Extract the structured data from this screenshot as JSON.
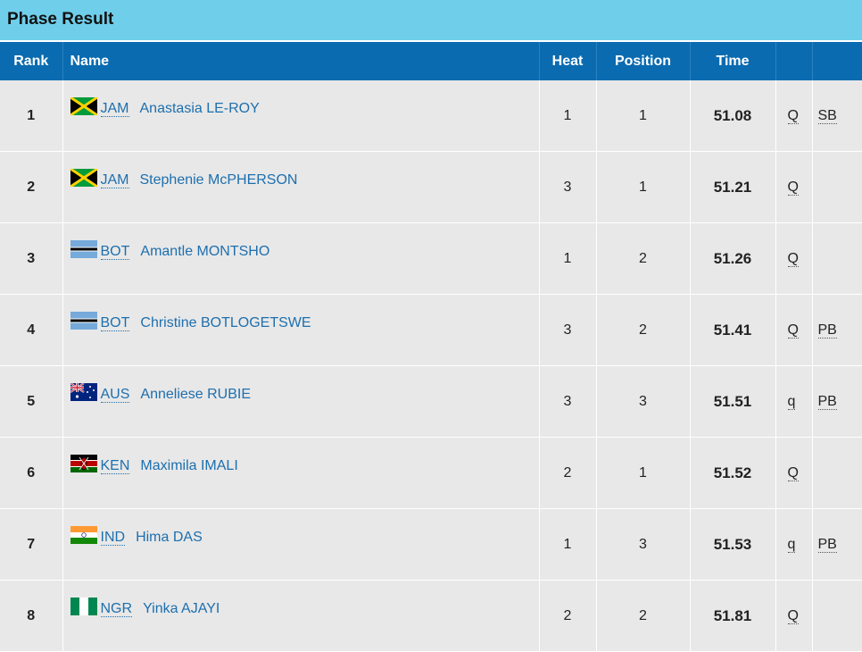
{
  "panel": {
    "title": "Phase Result"
  },
  "columns": {
    "rank": "Rank",
    "name": "Name",
    "heat": "Heat",
    "position": "Position",
    "time": "Time"
  },
  "rows": [
    {
      "rank": "1",
      "country": "JAM",
      "flag": "jamaica-flag-icon",
      "athlete": "Anastasia LE-ROY",
      "heat": "1",
      "position": "1",
      "time": "51.08",
      "q": "Q",
      "record": "SB"
    },
    {
      "rank": "2",
      "country": "JAM",
      "flag": "jamaica-flag-icon",
      "athlete": "Stephenie McPHERSON",
      "heat": "3",
      "position": "1",
      "time": "51.21",
      "q": "Q",
      "record": ""
    },
    {
      "rank": "3",
      "country": "BOT",
      "flag": "botswana-flag-icon",
      "athlete": "Amantle MONTSHO",
      "heat": "1",
      "position": "2",
      "time": "51.26",
      "q": "Q",
      "record": ""
    },
    {
      "rank": "4",
      "country": "BOT",
      "flag": "botswana-flag-icon",
      "athlete": "Christine BOTLOGETSWE",
      "heat": "3",
      "position": "2",
      "time": "51.41",
      "q": "Q",
      "record": "PB"
    },
    {
      "rank": "5",
      "country": "AUS",
      "flag": "australia-flag-icon",
      "athlete": "Anneliese RUBIE",
      "heat": "3",
      "position": "3",
      "time": "51.51",
      "q": "q",
      "record": "PB"
    },
    {
      "rank": "6",
      "country": "KEN",
      "flag": "kenya-flag-icon",
      "athlete": "Maximila IMALI",
      "heat": "2",
      "position": "1",
      "time": "51.52",
      "q": "Q",
      "record": ""
    },
    {
      "rank": "7",
      "country": "IND",
      "flag": "india-flag-icon",
      "athlete": "Hima DAS",
      "heat": "1",
      "position": "3",
      "time": "51.53",
      "q": "q",
      "record": "PB"
    },
    {
      "rank": "8",
      "country": "NGR",
      "flag": "nigeria-flag-icon",
      "athlete": "Yinka AJAYI",
      "heat": "2",
      "position": "2",
      "time": "51.81",
      "q": "Q",
      "record": ""
    }
  ]
}
